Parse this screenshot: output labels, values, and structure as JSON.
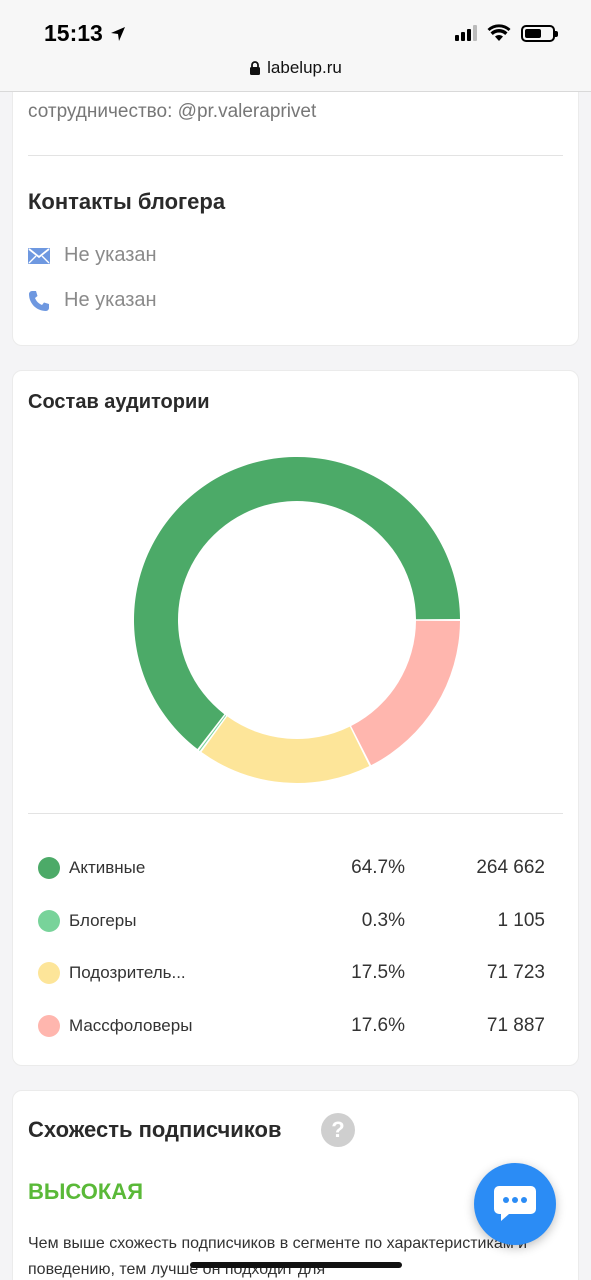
{
  "status_bar": {
    "time": "15:13"
  },
  "browser": {
    "url": "labelup.ru"
  },
  "contacts_card": {
    "cooperation_text": "сотрудничество: @pr.valeraprivet",
    "title": "Контакты блогера",
    "email": "Не указан",
    "phone": "Не указан"
  },
  "audience_card": {
    "title": "Состав аудитории",
    "legend": [
      {
        "label": "Активные",
        "percent": "64.7%",
        "count": "264 662",
        "color": "#4caa68"
      },
      {
        "label": "Блогеры",
        "percent": "0.3%",
        "count": "1 105",
        "color": "#78d39a"
      },
      {
        "label": "Подозритель...",
        "percent": "17.5%",
        "count": "71 723",
        "color": "#fde599"
      },
      {
        "label": "Массфоловеры",
        "percent": "17.6%",
        "count": "71 887",
        "color": "#ffb6ae"
      }
    ]
  },
  "chart_data": {
    "type": "pie",
    "categories": [
      "Активные",
      "Блогеры",
      "Подозритель...",
      "Массфоловеры"
    ],
    "values": [
      64.7,
      0.3,
      17.5,
      17.6
    ],
    "title": "Состав аудитории"
  },
  "similarity_card": {
    "title": "Схожесть подписчиков",
    "help": "?",
    "level": "ВЫСОКАЯ",
    "description": "Чем выше схожесть подписчиков в сегменте по характеристикам и поведению, тем лучше он подходит для"
  },
  "colors": {
    "accent_blue": "#2b8cf5",
    "level_green": "#5ab938"
  }
}
